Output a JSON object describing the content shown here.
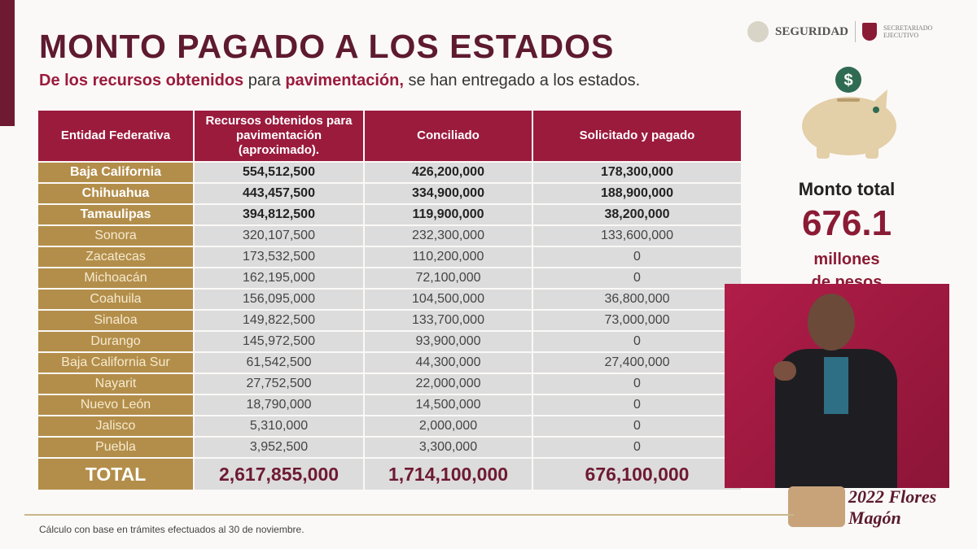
{
  "header": {
    "title": "MONTO PAGADO A LOS ESTADOS",
    "subtitle_bold1": "De los recursos obtenidos",
    "subtitle_text1": " para ",
    "subtitle_bold2": "pavimentación,",
    "subtitle_text2": " se han entregado a los estados.",
    "logo_seguridad": "SEGURIDAD",
    "logo_secretariado": "SECRETARIADO EJECUTIVO"
  },
  "colors": {
    "header": "#9b1b3d",
    "state_column": "#b38e4a",
    "cells": "#dcdcdc",
    "accent": "#8a1b35"
  },
  "table": {
    "columns": [
      "Entidad Federativa",
      "Recursos obtenidos para pavimentación (aproximado).",
      "Conciliado",
      "Solicitado y pagado"
    ],
    "rows": [
      [
        "Baja California",
        "554,512,500",
        "426,200,000",
        "178,300,000"
      ],
      [
        "Chihuahua",
        "443,457,500",
        "334,900,000",
        "188,900,000"
      ],
      [
        "Tamaulipas",
        "394,812,500",
        "119,900,000",
        "38,200,000"
      ],
      [
        "Sonora",
        "320,107,500",
        "232,300,000",
        "133,600,000"
      ],
      [
        "Zacatecas",
        "173,532,500",
        "110,200,000",
        "0"
      ],
      [
        "Michoacán",
        "162,195,000",
        "72,100,000",
        "0"
      ],
      [
        "Coahuila",
        "156,095,000",
        "104,500,000",
        "36,800,000"
      ],
      [
        "Sinaloa",
        "149,822,500",
        "133,700,000",
        "73,000,000"
      ],
      [
        "Durango",
        "145,972,500",
        "93,900,000",
        "0"
      ],
      [
        "Baja California Sur",
        "61,542,500",
        "44,300,000",
        "27,400,000"
      ],
      [
        "Nayarit",
        "27,752,500",
        "22,000,000",
        "0"
      ],
      [
        "Nuevo León",
        "18,790,000",
        "14,500,000",
        "0"
      ],
      [
        "Jalisco",
        "5,310,000",
        "2,000,000",
        "0"
      ],
      [
        "Puebla",
        "3,952,500",
        "3,300,000",
        "0"
      ]
    ],
    "bold_rows": 3,
    "total": [
      "TOTAL",
      "2,617,855,000",
      "1,714,100,000",
      "676,100,000"
    ]
  },
  "summary": {
    "label": "Monto total",
    "value": "676.1",
    "unit_line1": "millones",
    "unit_line2": "de pesos",
    "icon": "piggy-bank-dollar-icon"
  },
  "footer": {
    "note": "Cálculo con base en trámites efectuados al 30 de noviembre.",
    "year_logo": "2022 Flores Magón"
  }
}
